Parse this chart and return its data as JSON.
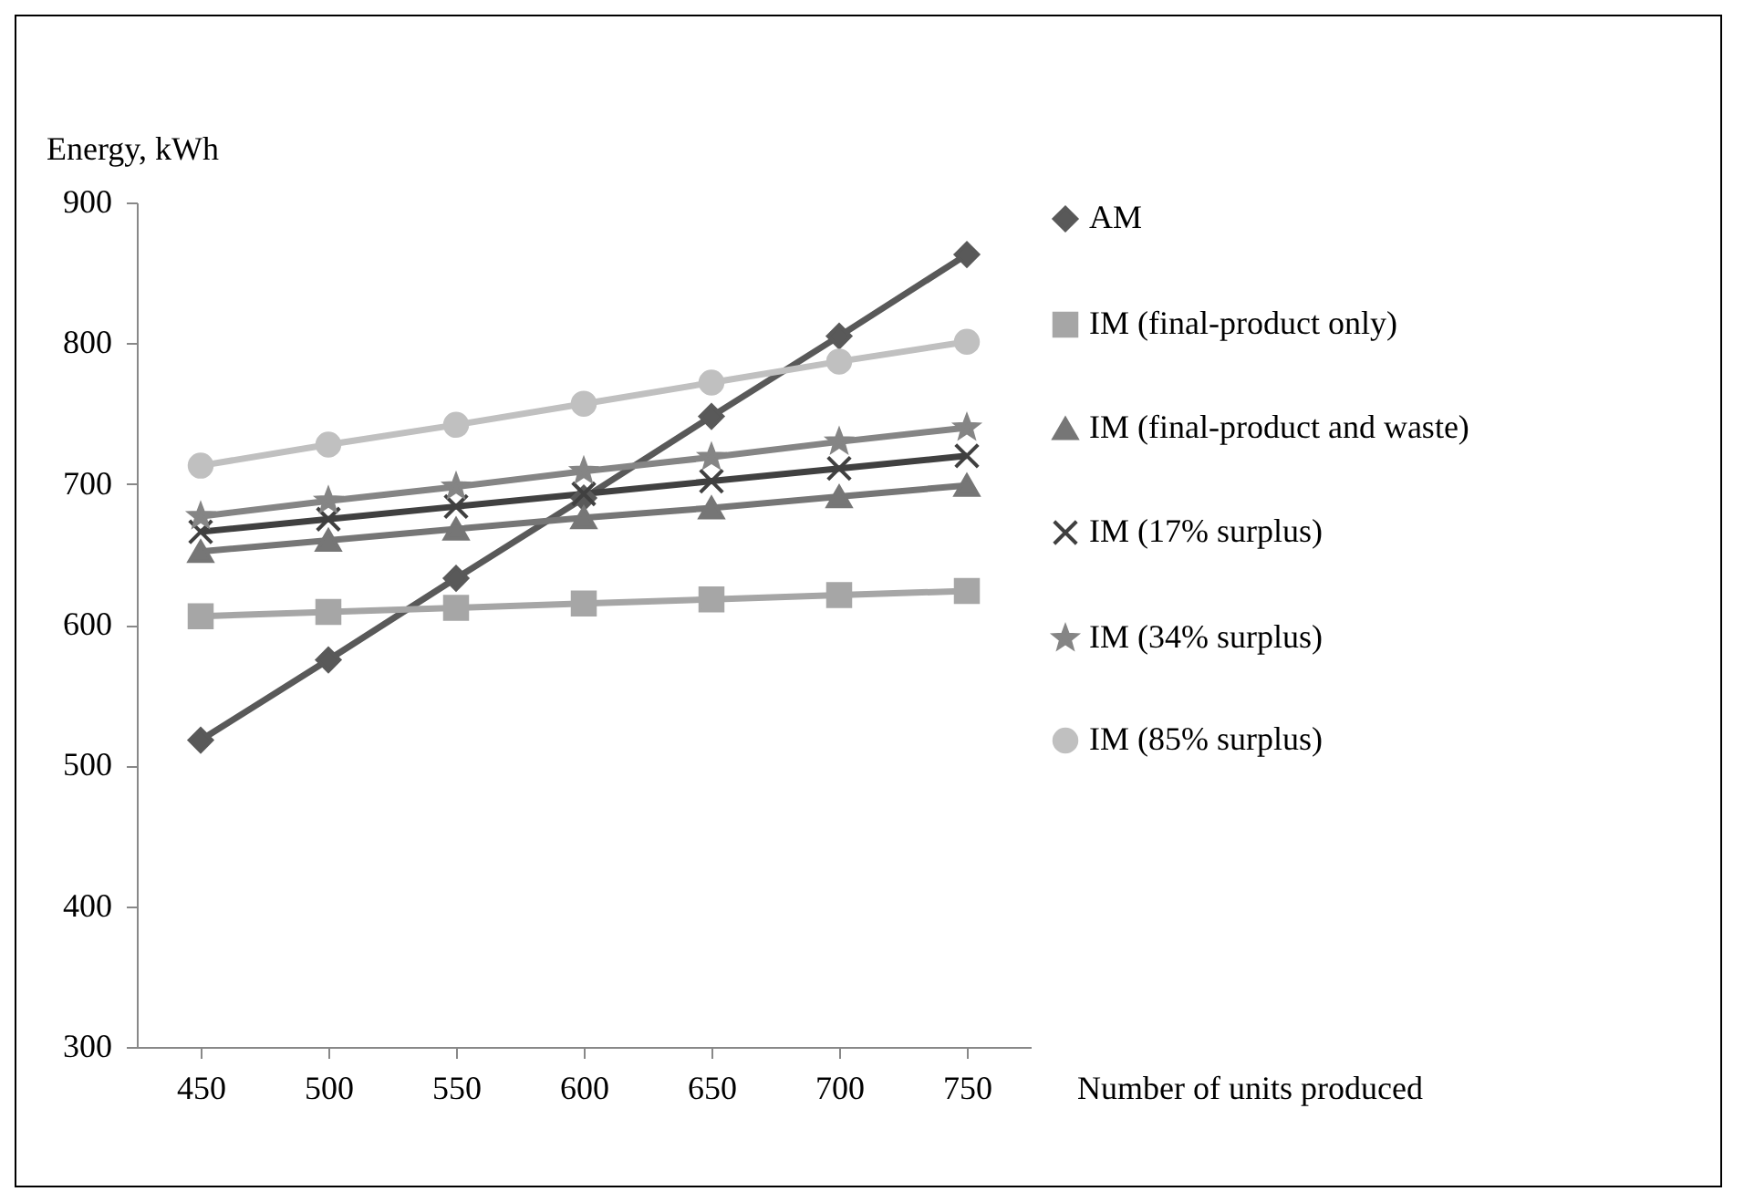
{
  "chart_data": {
    "type": "line",
    "xlabel": "Number of units produced",
    "ylabel": "Energy, kWh",
    "x": [
      450,
      500,
      550,
      600,
      650,
      700,
      750
    ],
    "xlim": [
      425,
      775
    ],
    "xticks": [
      450,
      500,
      550,
      600,
      650,
      700,
      750
    ],
    "ylim": [
      300,
      900
    ],
    "yticks": [
      300,
      400,
      500,
      600,
      700,
      800,
      900
    ],
    "grid": false,
    "legend": "right",
    "line_style": "solid",
    "series": [
      {
        "name": "AM",
        "color": "#595959",
        "marker": "diamond",
        "values": [
          518,
          575,
          633,
          690,
          748,
          805,
          863
        ]
      },
      {
        "name": "IM (final-product only)",
        "color": "#a6a6a6",
        "marker": "square",
        "values": [
          606,
          609,
          612,
          615,
          618,
          621,
          624
        ]
      },
      {
        "name": "IM (final-product and waste)",
        "color": "#767676",
        "marker": "triangle",
        "values": [
          652,
          660,
          668,
          676,
          683,
          691,
          699
        ]
      },
      {
        "name": "IM (17% surplus)",
        "color": "#404040",
        "marker": "cross",
        "values": [
          666,
          675,
          684,
          693,
          702,
          711,
          720
        ]
      },
      {
        "name": "IM (34% surplus)",
        "color": "#858585",
        "marker": "star",
        "values": [
          677,
          688,
          698,
          709,
          719,
          730,
          740
        ]
      },
      {
        "name": "IM (85% surplus)",
        "color": "#c0c0c0",
        "marker": "circle",
        "values": [
          713,
          728,
          742,
          757,
          772,
          787,
          801
        ]
      }
    ]
  }
}
